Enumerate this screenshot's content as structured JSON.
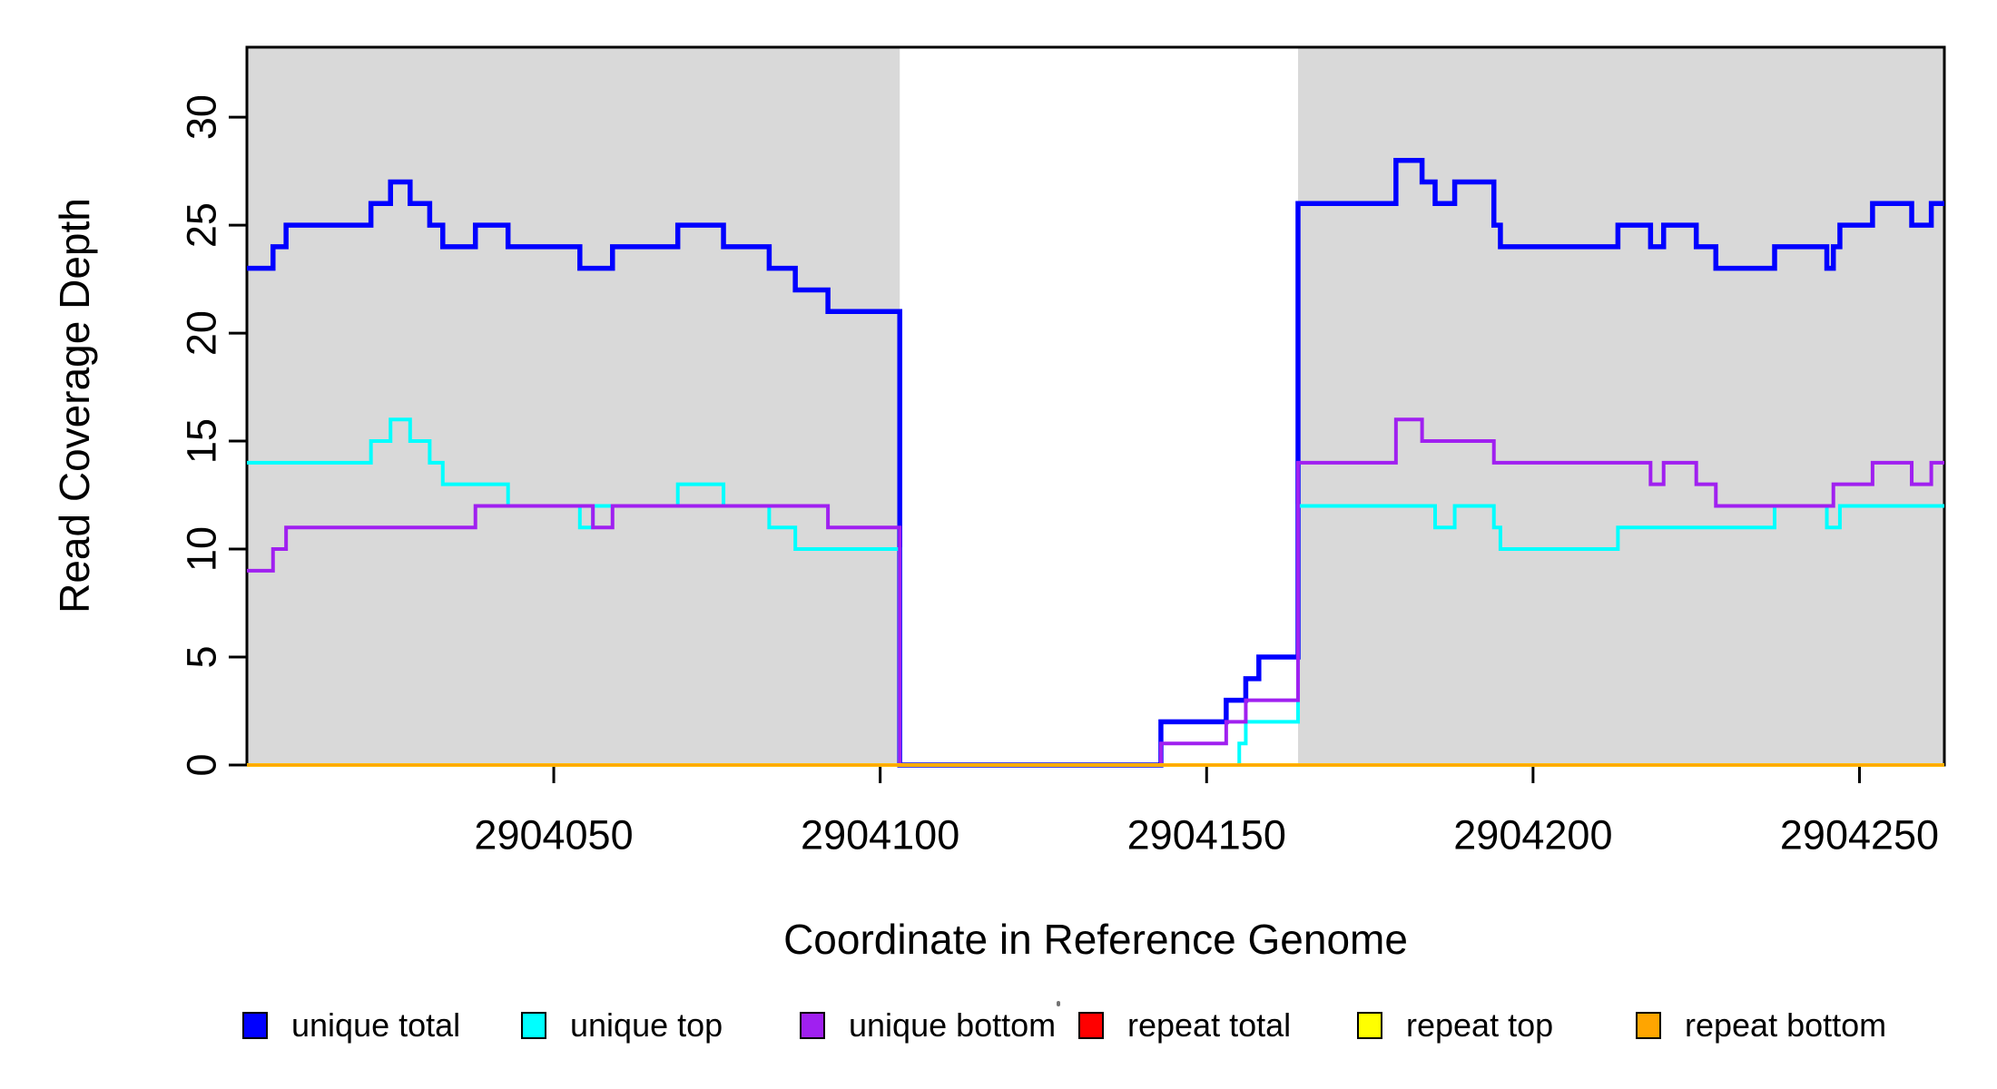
{
  "figure": {
    "background": "#FFFFFF",
    "axis_color": "#000000",
    "highlight_color": "#D9D9D9"
  },
  "chart_data": {
    "type": "line",
    "subtype": "step",
    "title": "",
    "xlabel": "Coordinate in Reference Genome",
    "ylabel": "Read Coverage Depth",
    "xlim": [
      2904003,
      2904263
    ],
    "ylim": [
      0,
      33.24
    ],
    "x_ticks": [
      2904050,
      2904100,
      2904150,
      2904200,
      2904250
    ],
    "y_ticks": [
      0,
      5,
      10,
      15,
      20,
      25,
      30
    ],
    "grid": false,
    "legend_position": "bottom-horizontal",
    "highlight_regions": [
      {
        "x0": 2904003,
        "x1": 2904103,
        "color": "#D9D9D9"
      },
      {
        "x0": 2904164,
        "x1": 2904263,
        "color": "#D9D9D9"
      }
    ],
    "series": [
      {
        "name": "unique total",
        "color": "#0000FF",
        "lwd": 5.5,
        "points": [
          [
            2904003,
            23
          ],
          [
            2904007,
            24
          ],
          [
            2904009,
            25
          ],
          [
            2904022,
            26
          ],
          [
            2904025,
            27
          ],
          [
            2904028,
            26
          ],
          [
            2904031,
            25
          ],
          [
            2904033,
            24
          ],
          [
            2904038,
            25
          ],
          [
            2904043,
            24
          ],
          [
            2904054,
            23
          ],
          [
            2904059,
            24
          ],
          [
            2904069,
            25
          ],
          [
            2904076,
            24
          ],
          [
            2904083,
            23
          ],
          [
            2904087,
            22
          ],
          [
            2904092,
            21
          ],
          [
            2904103,
            0
          ],
          [
            2904143,
            2
          ],
          [
            2904153,
            3
          ],
          [
            2904156,
            4
          ],
          [
            2904158,
            5
          ],
          [
            2904164,
            26
          ],
          [
            2904179,
            28
          ],
          [
            2904183,
            27
          ],
          [
            2904185,
            26
          ],
          [
            2904188,
            27
          ],
          [
            2904194,
            25
          ],
          [
            2904195,
            24
          ],
          [
            2904213,
            25
          ],
          [
            2904218,
            24
          ],
          [
            2904220,
            25
          ],
          [
            2904225,
            24
          ],
          [
            2904228,
            23
          ],
          [
            2904237,
            24
          ],
          [
            2904245,
            23
          ],
          [
            2904246,
            24
          ],
          [
            2904247,
            25
          ],
          [
            2904252,
            26
          ],
          [
            2904258,
            25
          ],
          [
            2904261,
            26
          ]
        ]
      },
      {
        "name": "unique top",
        "color": "#00FFFF",
        "lwd": 4,
        "points": [
          [
            2904003,
            14
          ],
          [
            2904022,
            15
          ],
          [
            2904025,
            16
          ],
          [
            2904028,
            15
          ],
          [
            2904031,
            14
          ],
          [
            2904033,
            13
          ],
          [
            2904043,
            12
          ],
          [
            2904054,
            11
          ],
          [
            2904056,
            12
          ],
          [
            2904069,
            13
          ],
          [
            2904076,
            12
          ],
          [
            2904083,
            11
          ],
          [
            2904087,
            10
          ],
          [
            2904103,
            0
          ],
          [
            2904155,
            1
          ],
          [
            2904156,
            2
          ],
          [
            2904164,
            12
          ],
          [
            2904185,
            11
          ],
          [
            2904188,
            12
          ],
          [
            2904194,
            11
          ],
          [
            2904195,
            10
          ],
          [
            2904213,
            11
          ],
          [
            2904237,
            12
          ],
          [
            2904245,
            11
          ],
          [
            2904247,
            12
          ]
        ]
      },
      {
        "name": "unique bottom",
        "color": "#A020F0",
        "lwd": 4,
        "points": [
          [
            2904003,
            9
          ],
          [
            2904007,
            10
          ],
          [
            2904009,
            11
          ],
          [
            2904038,
            12
          ],
          [
            2904056,
            11
          ],
          [
            2904059,
            12
          ],
          [
            2904092,
            11
          ],
          [
            2904103,
            0
          ],
          [
            2904143,
            1
          ],
          [
            2904153,
            2
          ],
          [
            2904156,
            3
          ],
          [
            2904164,
            14
          ],
          [
            2904179,
            16
          ],
          [
            2904183,
            15
          ],
          [
            2904194,
            14
          ],
          [
            2904218,
            13
          ],
          [
            2904220,
            14
          ],
          [
            2904225,
            13
          ],
          [
            2904228,
            12
          ],
          [
            2904246,
            13
          ],
          [
            2904252,
            14
          ],
          [
            2904258,
            13
          ],
          [
            2904261,
            14
          ]
        ]
      },
      {
        "name": "repeat total",
        "color": "#FF0000",
        "lwd": 4,
        "points": [
          [
            2904003,
            0
          ]
        ]
      },
      {
        "name": "repeat top",
        "color": "#FFFF00",
        "lwd": 4,
        "points": [
          [
            2904003,
            0
          ]
        ]
      },
      {
        "name": "repeat bottom",
        "color": "#FFA500",
        "lwd": 3.5,
        "points": [
          [
            2904003,
            0
          ]
        ]
      }
    ]
  }
}
